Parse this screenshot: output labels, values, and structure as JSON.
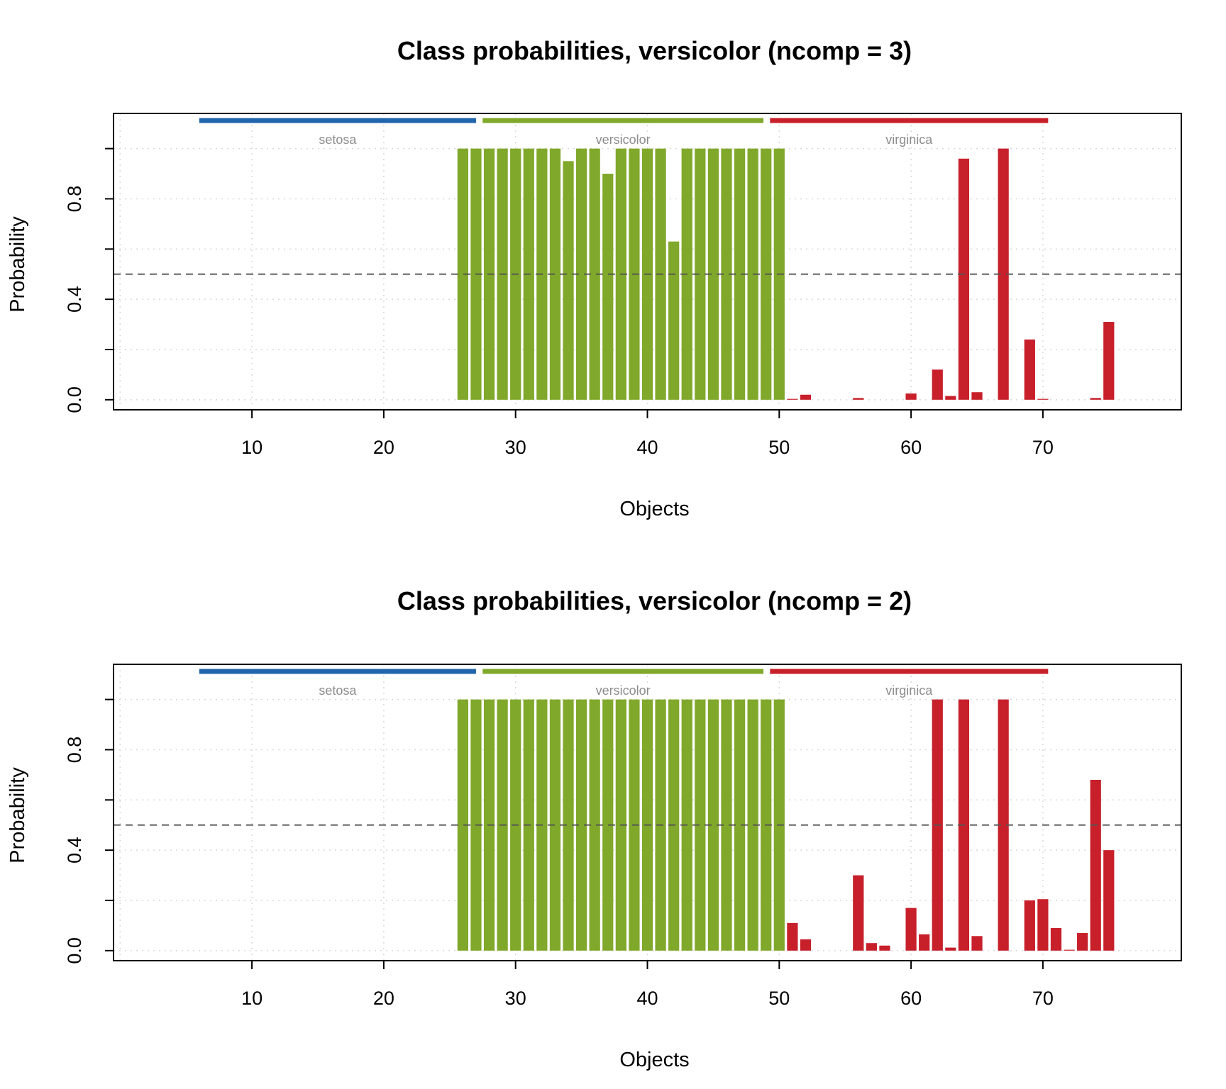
{
  "chart_data": [
    {
      "type": "bar",
      "title": "Class probabilities, versicolor (ncomp = 3)",
      "xlabel": "Objects",
      "ylabel": "Probability",
      "xlim": [
        -0.5,
        80.5
      ],
      "ylim": [
        -0.04,
        1.14
      ],
      "xticks": [
        "10",
        "20",
        "30",
        "40",
        "50",
        "60",
        "70"
      ],
      "xtick_values": [
        10,
        20,
        30,
        40,
        50,
        60,
        70
      ],
      "yticks": [
        "0.0",
        "0.4",
        "0.8"
      ],
      "ytick_values": [
        0.0,
        0.4,
        0.8
      ],
      "threshold": 0.5,
      "grid": true,
      "groups": [
        {
          "name": "setosa",
          "x_range": [
            6,
            27
          ],
          "color": "#2166ac"
        },
        {
          "name": "versicolor",
          "x_range": [
            27.5,
            48.8
          ],
          "color": "#80a82a"
        },
        {
          "name": "virginica",
          "x_range": [
            49.3,
            70.4
          ],
          "color": "#c8202b"
        }
      ],
      "series": [
        {
          "color": "#80a82a",
          "x": [
            26,
            27,
            28,
            29,
            30,
            31,
            32,
            33,
            34,
            35,
            36,
            37,
            38,
            39,
            40,
            41,
            42,
            43,
            44,
            45,
            46,
            47,
            48,
            49,
            50
          ],
          "values": [
            1,
            1,
            1,
            1,
            1,
            1,
            1,
            1,
            0.95,
            1,
            1,
            0.9,
            1,
            1,
            1,
            1,
            0.63,
            1,
            1,
            1,
            1,
            1,
            1,
            1,
            1
          ]
        },
        {
          "color": "#c8202b",
          "x": [
            51,
            52,
            53,
            54,
            55,
            56,
            57,
            58,
            59,
            60,
            61,
            62,
            63,
            64,
            65,
            66,
            67,
            68,
            69,
            70,
            71,
            72,
            73,
            74,
            75
          ],
          "values": [
            0.003,
            0.02,
            0,
            0,
            0,
            0.007,
            0,
            0,
            0,
            0.025,
            0,
            0.12,
            0.015,
            0.96,
            0.03,
            0,
            1,
            0,
            0.24,
            0.003,
            0,
            0,
            0,
            0.007,
            0.31
          ]
        }
      ]
    },
    {
      "type": "bar",
      "title": "Class probabilities, versicolor (ncomp = 2)",
      "xlabel": "Objects",
      "ylabel": "Probability",
      "xlim": [
        -0.5,
        80.5
      ],
      "ylim": [
        -0.04,
        1.14
      ],
      "xticks": [
        "10",
        "20",
        "30",
        "40",
        "50",
        "60",
        "70"
      ],
      "xtick_values": [
        10,
        20,
        30,
        40,
        50,
        60,
        70
      ],
      "yticks": [
        "0.0",
        "0.4",
        "0.8"
      ],
      "ytick_values": [
        0.0,
        0.4,
        0.8
      ],
      "threshold": 0.5,
      "grid": true,
      "groups": [
        {
          "name": "setosa",
          "x_range": [
            6,
            27
          ],
          "color": "#2166ac"
        },
        {
          "name": "versicolor",
          "x_range": [
            27.5,
            48.8
          ],
          "color": "#80a82a"
        },
        {
          "name": "virginica",
          "x_range": [
            49.3,
            70.4
          ],
          "color": "#c8202b"
        }
      ],
      "series": [
        {
          "color": "#80a82a",
          "x": [
            26,
            27,
            28,
            29,
            30,
            31,
            32,
            33,
            34,
            35,
            36,
            37,
            38,
            39,
            40,
            41,
            42,
            43,
            44,
            45,
            46,
            47,
            48,
            49,
            50
          ],
          "values": [
            1,
            1,
            1,
            1,
            1,
            1,
            1,
            1,
            1,
            1,
            1,
            1,
            1,
            1,
            1,
            1,
            1,
            1,
            1,
            1,
            1,
            1,
            1,
            1,
            1
          ]
        },
        {
          "color": "#c8202b",
          "x": [
            51,
            52,
            53,
            54,
            55,
            56,
            57,
            58,
            59,
            60,
            61,
            62,
            63,
            64,
            65,
            66,
            67,
            68,
            69,
            70,
            71,
            72,
            73,
            74,
            75
          ],
          "values": [
            0.11,
            0.045,
            0,
            0,
            0,
            0.3,
            0.03,
            0.02,
            0,
            0.17,
            0.065,
            1,
            0.012,
            1,
            0.058,
            0,
            1,
            0,
            0.2,
            0.205,
            0.09,
            0.003,
            0.07,
            0.68,
            0.4
          ]
        }
      ]
    }
  ]
}
